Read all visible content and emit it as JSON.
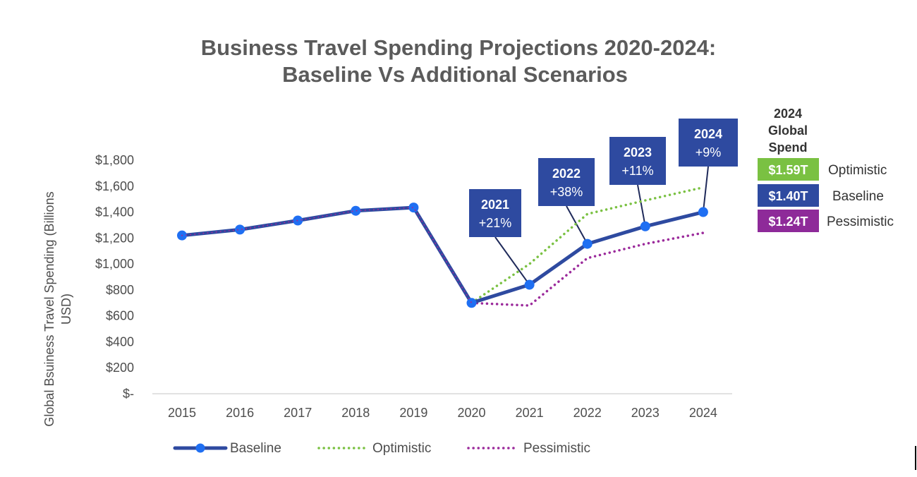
{
  "chart_data": {
    "type": "line",
    "title_lines": [
      "Business Travel Spending Projections 2020-2024:",
      "Baseline Vs Additional Scenarios"
    ],
    "ylabel_lines": [
      "Global Bsuiness Travel Spending (Billions",
      "USD)"
    ],
    "xlabel": "",
    "categories": [
      "2015",
      "2016",
      "2017",
      "2018",
      "2019",
      "2020",
      "2021",
      "2022",
      "2023",
      "2024"
    ],
    "ylim": [
      0,
      1800
    ],
    "y_ticks": [
      {
        "value": 0,
        "label": "$-"
      },
      {
        "value": 200,
        "label": "$200"
      },
      {
        "value": 400,
        "label": "$400"
      },
      {
        "value": 600,
        "label": "$600"
      },
      {
        "value": 800,
        "label": "$800"
      },
      {
        "value": 1000,
        "label": "$1,000"
      },
      {
        "value": 1200,
        "label": "$1,200"
      },
      {
        "value": 1400,
        "label": "$1,400"
      },
      {
        "value": 1600,
        "label": "$1,600"
      },
      {
        "value": 1800,
        "label": "$1,800"
      }
    ],
    "series": [
      {
        "name": "Baseline",
        "style": "solid-markers",
        "color": "#2e4aa0",
        "values": [
          1220,
          1265,
          1335,
          1410,
          1435,
          700,
          840,
          1155,
          1290,
          1400
        ]
      },
      {
        "name": "Optimistic",
        "style": "dotted",
        "color": "#7ac142",
        "values": [
          1220,
          1265,
          1335,
          1410,
          1435,
          700,
          1000,
          1385,
          1490,
          1590
        ]
      },
      {
        "name": "Pessimistic",
        "style": "dotted",
        "color": "#9b2a9b",
        "values": [
          1220,
          1265,
          1335,
          1410,
          1435,
          700,
          680,
          1045,
          1155,
          1240
        ]
      }
    ],
    "callouts": [
      {
        "category": "2021",
        "year": "2021",
        "change": "+21%"
      },
      {
        "category": "2022",
        "year": "2022",
        "change": "+38%"
      },
      {
        "category": "2023",
        "year": "2023",
        "change": "+11%"
      },
      {
        "category": "2024",
        "year": "2024",
        "change": "+9%"
      }
    ],
    "legend_position": "bottom",
    "grid": false
  },
  "side_panel": {
    "heading_lines": [
      "2024",
      "Global",
      "Spend"
    ],
    "items": [
      {
        "value": "$1.59T",
        "label": "Optimistic",
        "color": "#7ac142"
      },
      {
        "value": "$1.40T",
        "label": "Baseline",
        "color": "#2e4aa0"
      },
      {
        "value": "$1.24T",
        "label": "Pessimistic",
        "color": "#8e2a99"
      }
    ]
  },
  "colors": {
    "callout_bg": "#2e4aa0",
    "axis": "#d9d9d9",
    "title": "#5b5b5b"
  }
}
